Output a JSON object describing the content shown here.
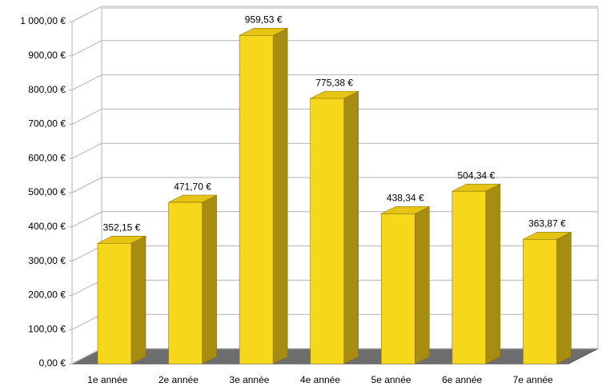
{
  "chart_data": {
    "type": "bar3d",
    "categories": [
      "1e année",
      "2e année",
      "3e année",
      "4e année",
      "5e année",
      "6e année",
      "7e année"
    ],
    "values": [
      352.15,
      471.7,
      959.53,
      775.38,
      438.34,
      504.34,
      363.87
    ],
    "value_labels": [
      "352,15 €",
      "471,70 €",
      "959,53 €",
      "775,38 €",
      "438,34 €",
      "504,34 €",
      "363,87 €"
    ],
    "color": "#f7d71c",
    "ylim": [
      0,
      1000
    ],
    "yticks": [
      {
        "value": 0,
        "label": "0,00 €"
      },
      {
        "value": 100,
        "label": "100,00 €"
      },
      {
        "value": 200,
        "label": "200,00 €"
      },
      {
        "value": 300,
        "label": "300,00 €"
      },
      {
        "value": 400,
        "label": "400,00 €"
      },
      {
        "value": 500,
        "label": "500,00 €"
      },
      {
        "value": 600,
        "label": "600,00 €"
      },
      {
        "value": 700,
        "label": "700,00 €"
      },
      {
        "value": 800,
        "label": "800,00 €"
      },
      {
        "value": 900,
        "label": "900,00 €"
      },
      {
        "value": 1000,
        "label": "1 000,00 €"
      }
    ],
    "grid": true
  }
}
